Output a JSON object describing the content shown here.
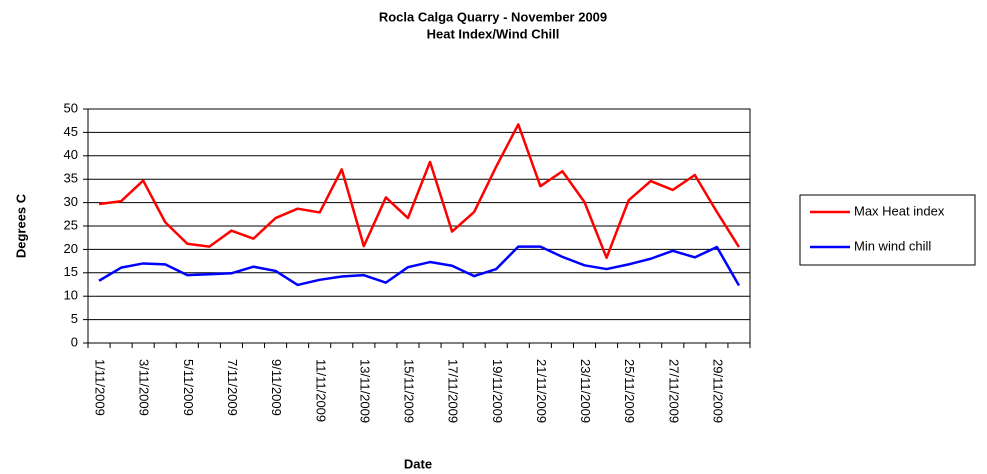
{
  "chart_data": {
    "type": "line",
    "title": "Rocla Calga Quarry - November 2009",
    "subtitle": "Heat Index/Wind Chill",
    "x_label": "Date",
    "y_label": "Degrees C",
    "categories": [
      "1/11/2009",
      null,
      "3/11/2009",
      null,
      "5/11/2009",
      null,
      "7/11/2009",
      null,
      "9/11/2009",
      null,
      "11/11/2009",
      null,
      "13/11/2009",
      null,
      "15/11/2009",
      null,
      "17/11/2009",
      null,
      "19/11/2009",
      null,
      "21/11/2009",
      null,
      "23/11/2009",
      null,
      "25/11/2009",
      null,
      "27/11/2009",
      null,
      "29/11/2009",
      null
    ],
    "series": [
      {
        "name": "Max Heat index",
        "color": "#ff0000",
        "values": [
          29.7,
          30.3,
          34.7,
          25.8,
          21.2,
          20.6,
          24,
          22.3,
          26.7,
          28.7,
          27.9,
          37.1,
          20.7,
          31.1,
          26.7,
          38.7,
          23.8,
          28,
          37.7,
          46.7,
          33.5,
          36.7,
          30.1,
          18.2,
          30.5,
          34.6,
          32.7,
          35.9,
          28,
          20.5
        ]
      },
      {
        "name": "Min wind chill",
        "color": "#0000ff",
        "values": [
          13.3,
          16.1,
          17,
          16.8,
          14.5,
          14.7,
          14.9,
          16.3,
          15.4,
          12.4,
          13.5,
          14.2,
          14.5,
          12.9,
          16.2,
          17.3,
          16.5,
          14.3,
          15.8,
          20.6,
          20.6,
          18.4,
          16.6,
          15.8,
          16.8,
          18,
          19.7,
          18.3,
          20.5,
          12.3
        ]
      }
    ],
    "ylim": [
      0,
      50
    ],
    "yticks": [
      0,
      5,
      10,
      15,
      20,
      25,
      30,
      35,
      40,
      45,
      50
    ],
    "grid": true,
    "legend": "right"
  }
}
